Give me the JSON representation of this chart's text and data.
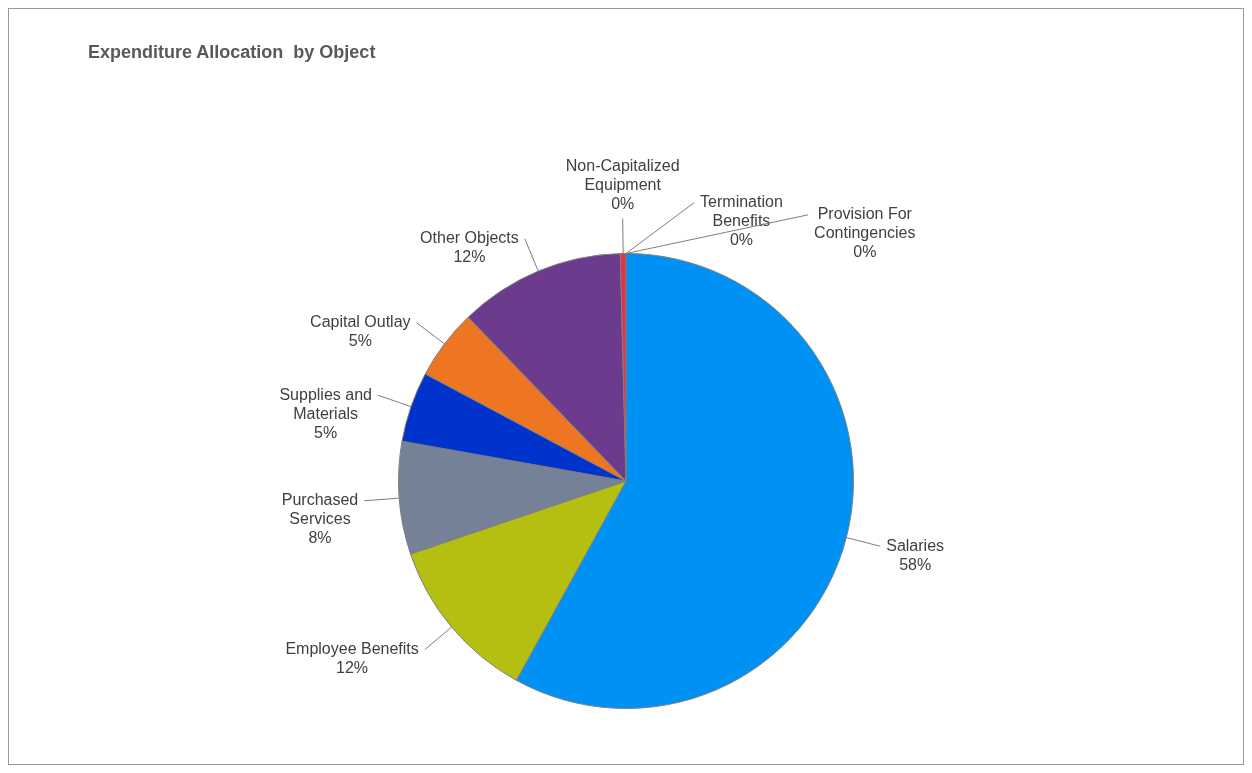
{
  "chart_data": {
    "type": "pie",
    "title": "Expenditure Allocation  by Object",
    "categories": [
      "Salaries",
      "Employee Benefits",
      "Purchased Services",
      "Supplies and Materials",
      "Capital Outlay",
      "Other Objects",
      "Non-Capitalized Equipment",
      "Termination Benefits",
      "Provision For Contingencies"
    ],
    "values": [
      58,
      11.8,
      8,
      5,
      5,
      11.8,
      0.4,
      0,
      0
    ],
    "value_labels": [
      "58%",
      "12%",
      "8%",
      "5%",
      "5%",
      "12%",
      "0%",
      "0%",
      "0%"
    ],
    "colors": [
      "#0091f5",
      "#b5bf12",
      "#748196",
      "#0033cc",
      "#ee7623",
      "#6d3b8e",
      "#e0334a",
      "#9bbb59",
      "#4bacc6"
    ],
    "legend": false
  }
}
